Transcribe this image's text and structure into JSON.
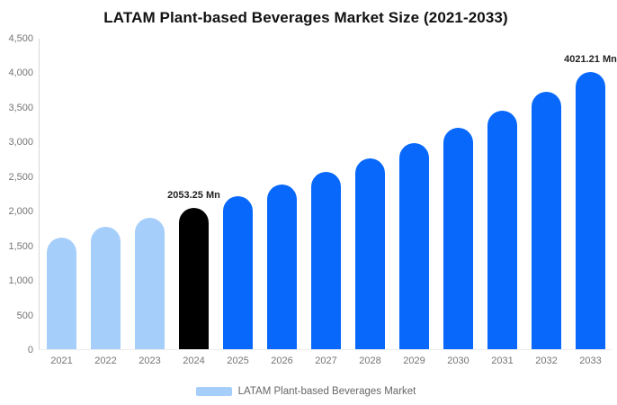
{
  "title": "LATAM Plant-based Beverages Market Size (2021-2033)",
  "colors": {
    "light_blue": "#a6cefa",
    "blue": "#0768fb",
    "black": "#000000",
    "axis_line": "#d9d9d9",
    "tick_text": "#757575",
    "data_label_text": "#222222"
  },
  "legend": {
    "label": "LATAM Plant-based Beverages Market",
    "swatch_color": "#a6cefa"
  },
  "chart_data": {
    "type": "bar",
    "title": "LATAM Plant-based Beverages Market Size (2021-2033)",
    "xlabel": "",
    "ylabel": "",
    "categories": [
      "2021",
      "2022",
      "2023",
      "2024",
      "2025",
      "2026",
      "2027",
      "2028",
      "2029",
      "2030",
      "2031",
      "2032",
      "2033"
    ],
    "series": [
      {
        "name": "LATAM Plant-based Beverages Market",
        "values": [
          1620,
          1775,
          1910,
          2053.25,
          2212,
          2384,
          2569,
          2768,
          2982,
          3213,
          3462,
          3731,
          4021.21
        ]
      }
    ],
    "bar_color_keys": [
      "light_blue",
      "light_blue",
      "light_blue",
      "black",
      "blue",
      "blue",
      "blue",
      "blue",
      "blue",
      "blue",
      "blue",
      "blue",
      "blue"
    ],
    "data_labels": [
      "",
      "",
      "",
      "2053.25 Mn",
      "",
      "",
      "",
      "",
      "",
      "",
      "",
      "",
      "4021.21 Mn"
    ],
    "ylim": [
      0,
      4500
    ],
    "yticks": [
      {
        "value": 0,
        "label": "0"
      },
      {
        "value": 500,
        "label": "500"
      },
      {
        "value": 1000,
        "label": "1,000"
      },
      {
        "value": 1500,
        "label": "1,500"
      },
      {
        "value": 2000,
        "label": "2,000"
      },
      {
        "value": 2500,
        "label": "2,500"
      },
      {
        "value": 3000,
        "label": "3,000"
      },
      {
        "value": 3500,
        "label": "3,500"
      },
      {
        "value": 4000,
        "label": "4,000"
      },
      {
        "value": 4500,
        "label": "4,500"
      }
    ],
    "grid": false,
    "legend_position": "bottom"
  }
}
